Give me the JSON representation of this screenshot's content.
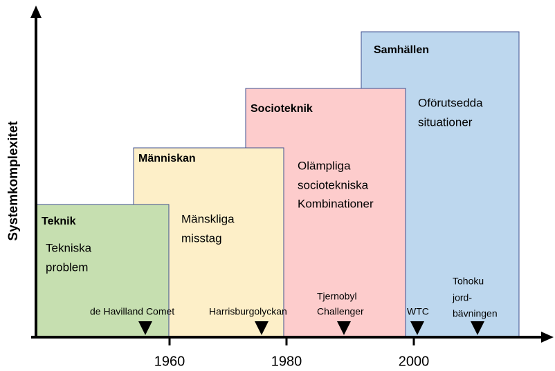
{
  "axes": {
    "y_label": "Systemkomplexitet",
    "x_ticks": [
      "1960",
      "1980",
      "2000"
    ]
  },
  "boxes": [
    {
      "title": "Teknik",
      "lines": [
        "Tekniska",
        "problem"
      ]
    },
    {
      "title": "Människan",
      "lines": [
        "Mänskliga",
        "misstag"
      ]
    },
    {
      "title": "Socioteknik",
      "lines": [
        "Olämpliga",
        "sociotekniska",
        "Kombinationer"
      ]
    },
    {
      "title": "Samhällen",
      "lines": [
        "Oförutsedda",
        "situationer"
      ]
    }
  ],
  "events": [
    {
      "lines": [
        "de Havilland Comet"
      ]
    },
    {
      "lines": [
        "Harrisburgolyckan"
      ]
    },
    {
      "lines": [
        "Tjernobyl",
        "Challenger"
      ]
    },
    {
      "lines": [
        "WTC"
      ]
    },
    {
      "lines": [
        "Tohoku",
        "jord-",
        "bävningen"
      ]
    }
  ]
}
